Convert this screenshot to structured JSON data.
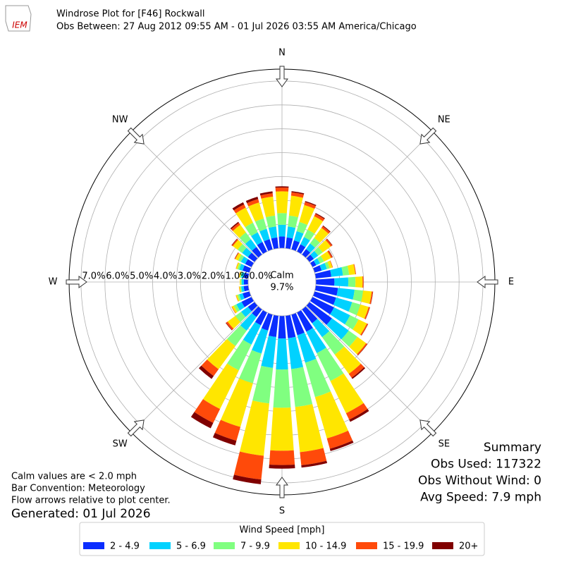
{
  "chart_data": {
    "type": "windrose",
    "logo_text": "IEM",
    "title": "Windrose Plot for [F46] Rockwall",
    "subtitle": "Obs Between: 27 Aug 2012 09:55 AM - 01 Jul 2026 03:55 AM America/Chicago",
    "compass_labels": [
      "N",
      "NE",
      "E",
      "SE",
      "S",
      "SW",
      "W",
      "NW"
    ],
    "directions": [
      0,
      10,
      20,
      30,
      40,
      50,
      60,
      70,
      80,
      90,
      100,
      110,
      120,
      130,
      140,
      150,
      160,
      170,
      180,
      190,
      200,
      210,
      220,
      230,
      240,
      250,
      260,
      270,
      280,
      290,
      300,
      310,
      320,
      330,
      340,
      350
    ],
    "rlim": [
      0,
      7.5
    ],
    "rticks": [
      {
        "value": 0,
        "label": "0.0%"
      },
      {
        "value": 1,
        "label": "1.0%"
      },
      {
        "value": 2,
        "label": "2.0%"
      },
      {
        "value": 3,
        "label": "3.0%"
      },
      {
        "value": 4,
        "label": "4.0%"
      },
      {
        "value": 5,
        "label": "5.0%"
      },
      {
        "value": 6,
        "label": "6.0%"
      },
      {
        "value": 7,
        "label": "7.0%"
      }
    ],
    "calm_label": "Calm",
    "calm_value": 9.7,
    "calm_value_label": "9.7%",
    "legend_title": "Wind Speed [mph]",
    "series": [
      {
        "name": "2 - 4.9",
        "color": "#0a2dff",
        "values": [
          0.49,
          0.46,
          0.4,
          0.34,
          0.29,
          0.23,
          0.18,
          0.31,
          0.66,
          0.78,
          0.94,
          0.94,
          1.01,
          1.17,
          0.72,
          0.9,
          0.9,
          0.95,
          0.95,
          0.9,
          0.7,
          0.6,
          0.4,
          0.35,
          0.47,
          0.3,
          0.2,
          0.18,
          0.2,
          0.3,
          0.3,
          0.35,
          0.4,
          0.45,
          0.45,
          0.46
        ]
      },
      {
        "name": "5 - 6.9",
        "color": "#00d2ff",
        "values": [
          0.49,
          0.46,
          0.4,
          0.34,
          0.29,
          0.23,
          0.18,
          0.23,
          0.49,
          0.58,
          0.7,
          0.7,
          0.75,
          0.87,
          0.72,
          1.0,
          1.2,
          1.3,
          1.3,
          1.3,
          1.0,
          0.9,
          0.7,
          0.35,
          0.24,
          0.15,
          0.1,
          0.09,
          0.1,
          0.15,
          0.2,
          0.3,
          0.4,
          0.45,
          0.45,
          0.46
        ]
      },
      {
        "name": "7 - 9.9",
        "color": "#80ff80",
        "values": [
          0.49,
          0.46,
          0.4,
          0.34,
          0.29,
          0.23,
          0.18,
          0.12,
          0.26,
          0.3,
          0.36,
          0.36,
          0.39,
          0.45,
          0.9,
          1.3,
          1.5,
          1.6,
          1.6,
          1.5,
          1.3,
          1.2,
          0.8,
          0.3,
          0.12,
          0.08,
          0.05,
          0.05,
          0.05,
          0.08,
          0.13,
          0.23,
          0.35,
          0.45,
          0.45,
          0.46
        ]
      },
      {
        "name": "10 - 14.9",
        "color": "#ffe600",
        "values": [
          0.91,
          0.84,
          0.74,
          0.63,
          0.52,
          0.42,
          0.33,
          0.12,
          0.26,
          0.3,
          0.36,
          0.36,
          0.39,
          0.45,
          1.0,
          1.5,
          1.8,
          1.9,
          1.8,
          2.2,
          1.9,
          1.8,
          1.2,
          0.4,
          0.09,
          0.06,
          0.04,
          0.03,
          0.04,
          0.06,
          0.13,
          0.25,
          0.4,
          0.7,
          0.7,
          0.8
        ]
      },
      {
        "name": "15 - 19.9",
        "color": "#ff4a0a",
        "values": [
          0.16,
          0.14,
          0.13,
          0.11,
          0.09,
          0.07,
          0.06,
          0.02,
          0.03,
          0.04,
          0.05,
          0.05,
          0.05,
          0.06,
          0.2,
          0.3,
          0.45,
          0.55,
          0.6,
          1.0,
          0.6,
          0.65,
          0.35,
          0.08,
          0.02,
          0.01,
          0.01,
          0,
          0.01,
          0.01,
          0.03,
          0.05,
          0.1,
          0.15,
          0.15,
          0.14
        ]
      },
      {
        "name": "20+",
        "color": "#800000",
        "values": [
          0.05,
          0.05,
          0.04,
          0.04,
          0.03,
          0.02,
          0.02,
          0,
          0,
          0,
          0.01,
          0.01,
          0.01,
          0.01,
          0.06,
          0.1,
          0.1,
          0.1,
          0.15,
          0.2,
          0.2,
          0.25,
          0.15,
          0.02,
          0,
          0,
          0,
          0,
          0,
          0,
          0.01,
          0.02,
          0.05,
          0.1,
          0.1,
          0.08
        ]
      }
    ],
    "notes": [
      "Calm values are < 2.0 mph",
      "Bar Convention: Meteorology",
      "Flow arrows relative to plot center."
    ],
    "generated": "Generated: 01 Jul 2026",
    "summary": [
      "Summary",
      "Obs Used: 117322",
      "Obs Without Wind: 0",
      "Avg Speed: 7.9 mph"
    ]
  }
}
